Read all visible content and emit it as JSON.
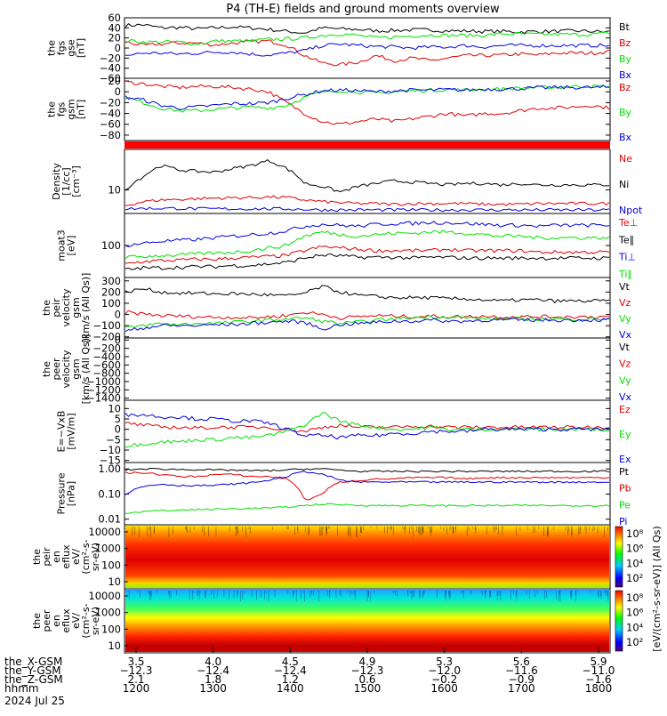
{
  "title": "P4 (TH-E) fields and ground moments overview",
  "colors": {
    "black": "#000000",
    "red": "#e00000",
    "green": "#00e000",
    "blue": "#0000e0"
  },
  "chart_data": [
    {
      "id": "fgs-gse",
      "type": "line",
      "ylabel": [
        "the",
        "fgs",
        "gse",
        "[nT]"
      ],
      "yticks": [
        "60",
        "40",
        "20",
        "0",
        "−20",
        "−40",
        "−60"
      ],
      "ylim": [
        -60,
        60
      ],
      "series": [
        {
          "name": "Bt",
          "color": "black",
          "values": [
            45,
            46,
            40,
            41,
            38,
            40,
            42,
            40,
            37,
            33,
            30,
            40,
            38,
            37,
            34,
            35,
            36,
            36,
            34,
            34,
            33,
            33,
            32,
            33,
            33,
            34,
            33,
            32
          ]
        },
        {
          "name": "Bz",
          "color": "red",
          "values": [
            12,
            5,
            8,
            10,
            10,
            6,
            10,
            12,
            14,
            6,
            -15,
            -30,
            -33,
            -28,
            -15,
            -25,
            -20,
            -25,
            -20,
            -15,
            -15,
            -14,
            -12,
            -14,
            -10,
            -10,
            -10,
            -7
          ]
        },
        {
          "name": "By",
          "color": "green",
          "values": [
            15,
            12,
            12,
            12,
            8,
            14,
            14,
            14,
            17,
            18,
            20,
            25,
            28,
            25,
            20,
            22,
            24,
            26,
            25,
            25,
            25,
            28,
            28,
            27,
            27,
            27,
            27,
            30
          ]
        },
        {
          "name": "Bx",
          "color": "blue",
          "values": [
            -15,
            -10,
            -10,
            -12,
            -10,
            -8,
            -8,
            -12,
            -14,
            -10,
            -5,
            5,
            8,
            5,
            3,
            2,
            0,
            2,
            2,
            5,
            2,
            5,
            5,
            5,
            5,
            5,
            5,
            5
          ]
        }
      ]
    },
    {
      "id": "fgs-gsm",
      "type": "line",
      "ylabel": [
        "the",
        "fgs",
        "gsm",
        "[nT]"
      ],
      "yticks": [
        "20",
        "0",
        "−20",
        "−40",
        "−60",
        "−80"
      ],
      "ylim": [
        -90,
        25
      ],
      "series": [
        {
          "name": "Bz",
          "color": "red",
          "values": [
            18,
            15,
            10,
            8,
            10,
            10,
            8,
            5,
            0,
            -20,
            -40,
            -55,
            -60,
            -55,
            -50,
            -55,
            -50,
            -45,
            -40,
            -45,
            -40,
            -40,
            -35,
            -30,
            -30,
            -28,
            -25,
            -30
          ]
        },
        {
          "name": "By",
          "color": "green",
          "values": [
            -10,
            -20,
            -30,
            -35,
            -35,
            -32,
            -30,
            -28,
            -30,
            -25,
            -10,
            0,
            2,
            0,
            -3,
            0,
            2,
            3,
            4,
            3,
            5,
            5,
            7,
            8,
            8,
            10,
            10,
            10
          ]
        },
        {
          "name": "Bx",
          "color": "blue",
          "values": [
            -10,
            -15,
            -25,
            -30,
            -28,
            -25,
            -22,
            -22,
            -20,
            -12,
            -5,
            2,
            3,
            2,
            0,
            2,
            3,
            3,
            4,
            3,
            5,
            5,
            6,
            7,
            8,
            8,
            8,
            8
          ]
        }
      ]
    },
    {
      "id": "density",
      "type": "line",
      "log": true,
      "ylabel": [
        "Density",
        "[1/cc]",
        "[cm⁻³]"
      ],
      "yticks": [
        "10"
      ],
      "ylim": [
        3,
        80
      ],
      "series": [
        {
          "name": "Ne",
          "color": "red",
          "values": [
            4.5,
            5.5,
            6,
            6.2,
            6.4,
            6.6,
            6.7,
            6.8,
            7,
            6.8,
            6,
            5.5,
            5.2,
            5,
            5,
            4.8,
            5,
            5,
            5,
            5,
            4.8,
            4.8,
            4.8,
            5,
            5,
            5,
            5,
            5
          ]
        },
        {
          "name": "Ni",
          "color": "black",
          "values": [
            10,
            20,
            35,
            28,
            26,
            25,
            30,
            35,
            45,
            30,
            14,
            12,
            9,
            12,
            14,
            16,
            15,
            14,
            13,
            14,
            14,
            13,
            14,
            13,
            13,
            13,
            13,
            13
          ]
        },
        {
          "name": "Npot",
          "color": "blue",
          "values": [
            3.8,
            3.9,
            3.9,
            3.9,
            3.8,
            3.8,
            3.8,
            3.8,
            3.8,
            3.8,
            3.7,
            3.6,
            3.6,
            3.6,
            3.6,
            3.6,
            3.6,
            3.6,
            3.6,
            3.6,
            3.6,
            3.6,
            3.6,
            3.6,
            3.6,
            3.6,
            3.6,
            3.6
          ]
        }
      ]
    },
    {
      "id": "temperature",
      "type": "line",
      "log": true,
      "ylabel": [
        "moat3",
        "[eV]"
      ],
      "yticks": [
        "100"
      ],
      "ylim": [
        25,
        400
      ],
      "series": [
        {
          "name": "Te⊥",
          "color": "red",
          "values": [
            45,
            50,
            52,
            53,
            55,
            55,
            58,
            60,
            62,
            65,
            80,
            95,
            90,
            85,
            80,
            80,
            80,
            80,
            85,
            80,
            80,
            80,
            80,
            75,
            75,
            75,
            75,
            75
          ]
        },
        {
          "name": "Te∥",
          "color": "black",
          "values": [
            35,
            38,
            38,
            39,
            40,
            40,
            42,
            42,
            45,
            48,
            58,
            66,
            64,
            60,
            60,
            60,
            58,
            60,
            60,
            58,
            58,
            58,
            58,
            58,
            58,
            58,
            58,
            58
          ]
        },
        {
          "name": "Ti⊥",
          "color": "blue",
          "values": [
            100,
            110,
            120,
            125,
            130,
            140,
            150,
            160,
            170,
            190,
            230,
            250,
            240,
            230,
            250,
            260,
            260,
            270,
            270,
            260,
            250,
            240,
            240,
            230,
            240,
            240,
            240,
            240
          ]
        },
        {
          "name": "Ti∥",
          "color": "green",
          "values": [
            60,
            62,
            65,
            66,
            70,
            72,
            75,
            80,
            90,
            100,
            150,
            180,
            160,
            150,
            160,
            170,
            170,
            180,
            180,
            170,
            160,
            150,
            150,
            140,
            140,
            140,
            140,
            140
          ]
        }
      ]
    },
    {
      "id": "peir-velocity",
      "type": "line",
      "ylabel": [
        "the",
        "peir",
        "velocity",
        "gsm",
        "[km/s (All Qs)]"
      ],
      "yticks": [
        "300",
        "200",
        "100",
        "0",
        "−100",
        "−200"
      ],
      "ylim": [
        -210,
        330
      ],
      "series": [
        {
          "name": "Vt",
          "color": "black",
          "values": [
            200,
            230,
            200,
            190,
            190,
            185,
            185,
            180,
            175,
            165,
            190,
            250,
            200,
            170,
            160,
            150,
            150,
            150,
            140,
            140,
            130,
            120,
            130,
            130,
            120,
            120,
            120,
            120
          ]
        },
        {
          "name": "Vz",
          "color": "red",
          "values": [
            20,
            5,
            -10,
            -15,
            -20,
            -25,
            -25,
            -30,
            -20,
            -10,
            20,
            0,
            -30,
            -20,
            -10,
            -15,
            -20,
            -15,
            -20,
            -20,
            -15,
            -20,
            -20,
            -20,
            -20,
            -20,
            -20,
            -20
          ]
        },
        {
          "name": "Vy",
          "color": "green",
          "values": [
            -120,
            -100,
            -80,
            -90,
            -80,
            -80,
            -70,
            -60,
            -50,
            -40,
            -30,
            -60,
            -80,
            -70,
            -50,
            -40,
            -30,
            -20,
            -20,
            -30,
            -40,
            -40,
            -40,
            -40,
            -40,
            -40,
            -40,
            -40
          ]
        },
        {
          "name": "Vx",
          "color": "blue",
          "values": [
            -150,
            -120,
            -100,
            -100,
            -100,
            -90,
            -90,
            -80,
            -70,
            -60,
            -70,
            -130,
            -90,
            -80,
            -70,
            -60,
            -60,
            -50,
            -60,
            -60,
            -50,
            -50,
            -50,
            -50,
            -50,
            -50,
            -50,
            -50
          ]
        }
      ]
    },
    {
      "id": "peer-velocity",
      "type": "line",
      "ylabel": [
        "the",
        "peer",
        "velocity",
        "gsm",
        "[km/s (All Qs)]"
      ],
      "yticks": [
        "0",
        "−200",
        "−400",
        "−600",
        "−800",
        "−1000",
        "−1200",
        "−1400"
      ],
      "ylim": [
        -1450,
        50
      ],
      "series": [
        {
          "name": "Vt",
          "color": "black",
          "values": []
        },
        {
          "name": "Vz",
          "color": "red",
          "values": []
        },
        {
          "name": "Vy",
          "color": "green",
          "values": []
        },
        {
          "name": "Vx",
          "color": "blue",
          "values": []
        }
      ]
    },
    {
      "id": "efield",
      "type": "line",
      "ylabel": [
        "E=−VxB",
        "[mV/m]"
      ],
      "yticks": [
        "10",
        "5",
        "0",
        "−5",
        "−10",
        "−15"
      ],
      "ylim": [
        -16,
        14
      ],
      "series": [
        {
          "name": "Ez",
          "color": "red",
          "values": [
            3,
            2,
            1,
            1,
            0.5,
            1,
            1,
            1,
            1,
            0,
            -1,
            1,
            2,
            1,
            1,
            1,
            1.5,
            1.5,
            1,
            1,
            1,
            1,
            1,
            1,
            1,
            1,
            1,
            1
          ]
        },
        {
          "name": "Ey",
          "color": "green",
          "values": [
            -8,
            -7,
            -6,
            -6,
            -5,
            -5,
            -4,
            -4,
            -3,
            -1,
            2,
            8,
            4,
            2,
            1,
            0,
            0,
            1,
            0,
            0,
            0,
            0,
            0,
            0,
            0,
            0,
            0,
            0
          ]
        },
        {
          "name": "Ex",
          "color": "blue",
          "values": [
            7,
            7,
            6,
            6,
            5,
            5,
            4,
            4,
            3,
            0,
            -3,
            -3,
            -4,
            -3,
            -3,
            -2,
            -2,
            -1,
            -1,
            -1,
            0,
            0,
            0,
            0,
            0,
            0,
            0,
            0
          ]
        }
      ]
    },
    {
      "id": "pressure",
      "type": "line",
      "log": true,
      "ylabel": [
        "Pressure",
        "[nPa]"
      ],
      "yticks": [
        "1.00",
        "0.10",
        "0.01"
      ],
      "ylim": [
        0.006,
        1.8
      ],
      "series": [
        {
          "name": "Pt",
          "color": "black",
          "values": [
            0.9,
            1.0,
            1.0,
            0.95,
            0.95,
            0.9,
            0.9,
            0.85,
            0.85,
            0.9,
            1.0,
            1.0,
            0.9,
            0.8,
            0.8,
            0.8,
            0.8,
            0.8,
            0.8,
            0.8,
            0.8,
            0.8,
            0.8,
            0.8,
            0.8,
            0.8,
            0.8,
            0.8
          ]
        },
        {
          "name": "Pb",
          "color": "red",
          "values": [
            0.7,
            0.7,
            0.6,
            0.5,
            0.5,
            0.6,
            0.6,
            0.5,
            0.5,
            0.4,
            0.05,
            0.1,
            0.3,
            0.35,
            0.4,
            0.4,
            0.45,
            0.45,
            0.45,
            0.4,
            0.45,
            0.45,
            0.45,
            0.45,
            0.45,
            0.45,
            0.45,
            0.45
          ]
        },
        {
          "name": "Pe",
          "color": "green",
          "values": [
            0.018,
            0.02,
            0.022,
            0.023,
            0.024,
            0.025,
            0.026,
            0.027,
            0.028,
            0.03,
            0.035,
            0.04,
            0.038,
            0.036,
            0.035,
            0.035,
            0.035,
            0.035,
            0.035,
            0.035,
            0.035,
            0.035,
            0.035,
            0.035,
            0.035,
            0.035,
            0.035,
            0.035
          ]
        },
        {
          "name": "Pi",
          "color": "blue",
          "values": [
            0.1,
            0.2,
            0.25,
            0.22,
            0.22,
            0.22,
            0.25,
            0.28,
            0.35,
            0.5,
            0.8,
            0.6,
            0.35,
            0.3,
            0.3,
            0.3,
            0.3,
            0.3,
            0.3,
            0.3,
            0.3,
            0.3,
            0.3,
            0.3,
            0.3,
            0.3,
            0.3,
            0.3
          ]
        }
      ]
    },
    {
      "id": "peir-eflux",
      "type": "heatmap",
      "ylabel": [
        "the",
        "peir",
        "en",
        "eflux",
        "eV/",
        "(cm²-s-",
        "sr-eV)"
      ],
      "yticks": [
        "10000",
        "1000",
        "100",
        "10"
      ]
    },
    {
      "id": "peer-eflux",
      "type": "heatmap",
      "ylabel": [
        "the",
        "peer",
        "en",
        "eflux",
        "eV/",
        "(cm²-s-",
        "sr-eV)"
      ],
      "yticks": [
        "10000",
        "1000",
        "100",
        "10"
      ]
    }
  ],
  "colorbar": {
    "label": "[eV/(cm²-s-sr-eV)] (All Qs)",
    "ticks": [
      "10⁸",
      "10⁶",
      "10⁴",
      "10²",
      "10⁸",
      "10⁶",
      "10⁴",
      "10²"
    ]
  },
  "xaxis": {
    "rows": [
      {
        "label": "the_X-GSM",
        "values": [
          "3.5",
          "4.0",
          "4.5",
          "4.9",
          "5.3",
          "5.6",
          "5.9"
        ]
      },
      {
        "label": "the_Y-GSM",
        "values": [
          "−12.3",
          "−12.4",
          "−12.4",
          "−12.3",
          "−12.0",
          "−11.6",
          "−11.0"
        ]
      },
      {
        "label": "the_Z-GSM",
        "values": [
          "2.1",
          "1.8",
          "1.2",
          "0.6",
          "−0.2",
          "−0.9",
          "−1.6"
        ]
      },
      {
        "label": "hhmm",
        "values": [
          "1200",
          "1300",
          "1400",
          "1500",
          "1600",
          "1700",
          "1800"
        ]
      }
    ],
    "date": "2024 Jul 25"
  }
}
